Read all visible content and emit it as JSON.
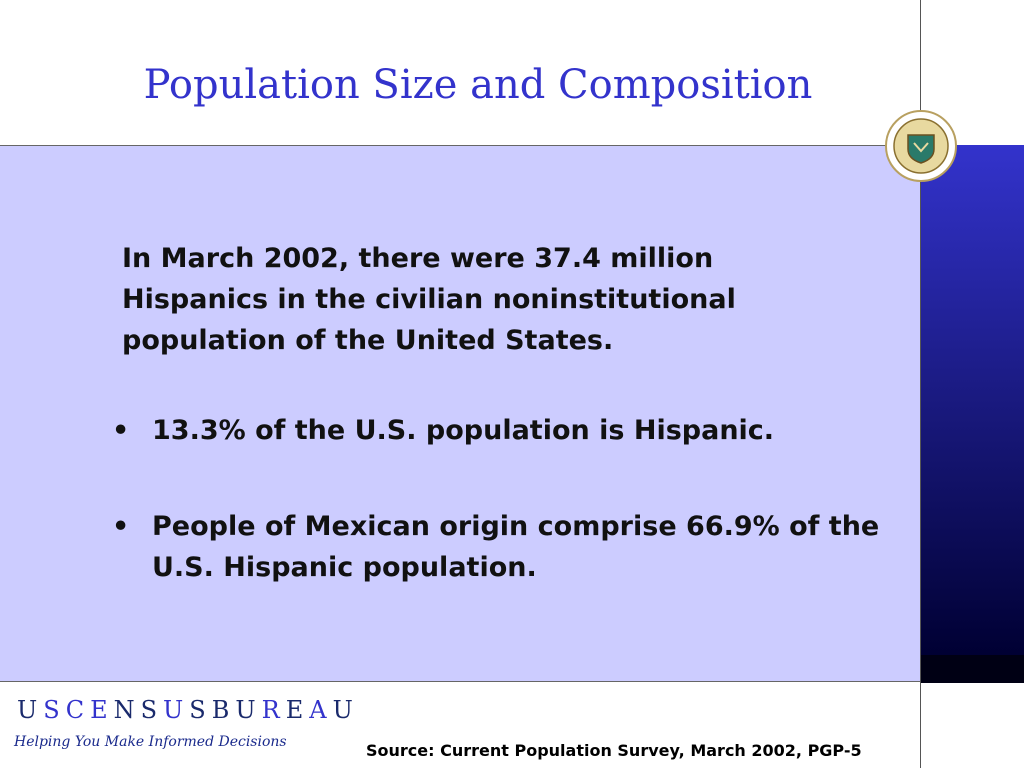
{
  "title": "Population Size and Composition",
  "intro": "In March 2002, there were 37.4 million Hispanics in the civilian noninstitutional population of the United States.",
  "bullets": [
    "13.3% of the U.S. population is Hispanic.",
    "People of Mexican origin comprise 66.9% of the U.S. Hispanic population."
  ],
  "footer": {
    "brand_letters": [
      "U",
      "S",
      "C",
      "E",
      "N",
      "S",
      "U",
      "S",
      "B",
      "U",
      "R",
      "E",
      "A",
      "U"
    ],
    "tagline": "Helping You Make Informed Decisions",
    "source": "Source:  Current Population Survey, March 2002, PGP-5"
  }
}
